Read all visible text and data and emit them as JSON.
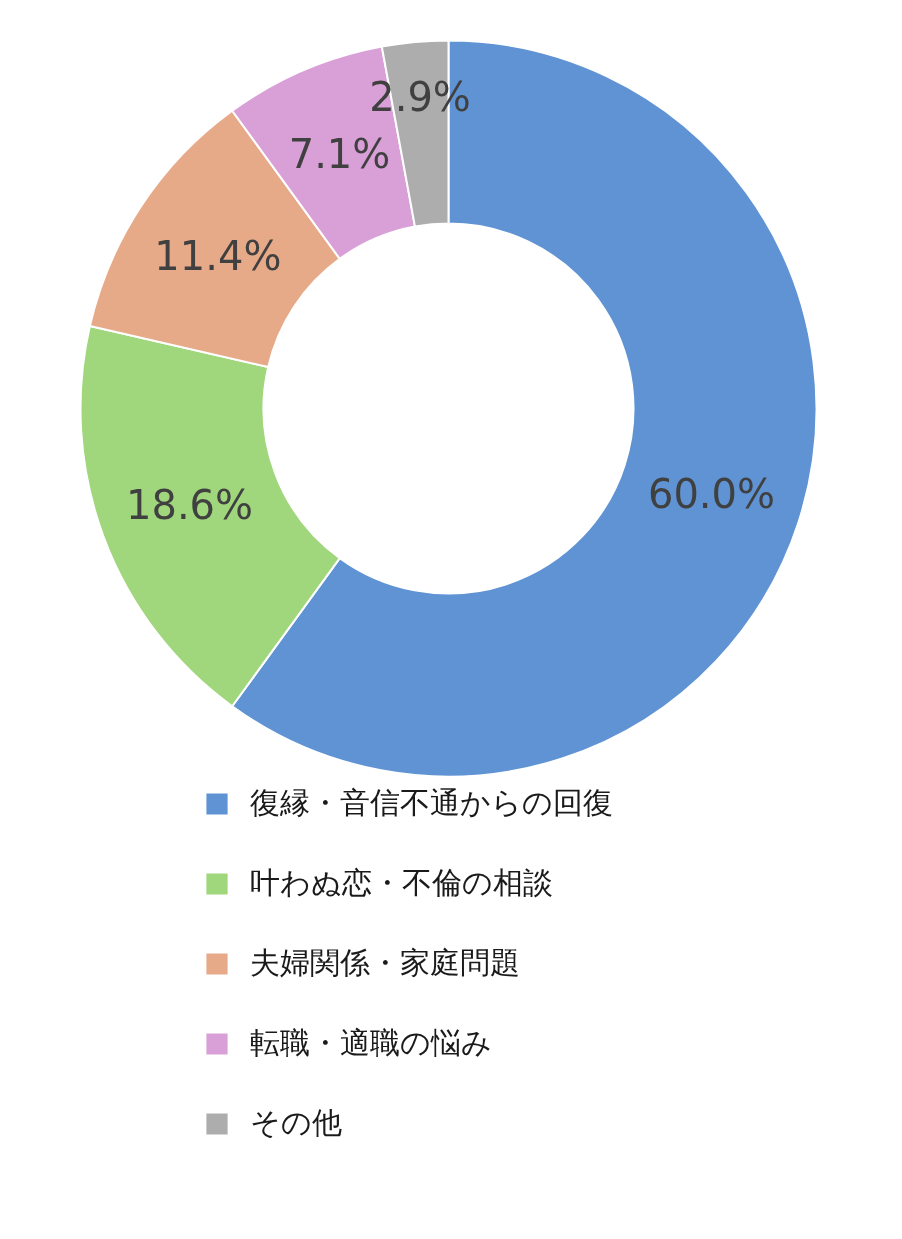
{
  "chart_data": {
    "type": "donut",
    "categories": [
      "復縁・音信不通からの回復",
      "叶わぬ恋・不倫の相談",
      "夫婦関係・家庭問題",
      "転職・適職の悩み",
      "その他"
    ],
    "values": [
      60.0,
      18.6,
      11.4,
      7.1,
      2.9
    ],
    "colors": [
      "#5f93d3",
      "#a0d67c",
      "#e7aa89",
      "#d9a0d8",
      "#adadad"
    ],
    "value_labels": [
      "60.0%",
      "18.6%",
      "11.4%",
      "7.1%",
      "2.9%"
    ],
    "legend": "bottom"
  }
}
